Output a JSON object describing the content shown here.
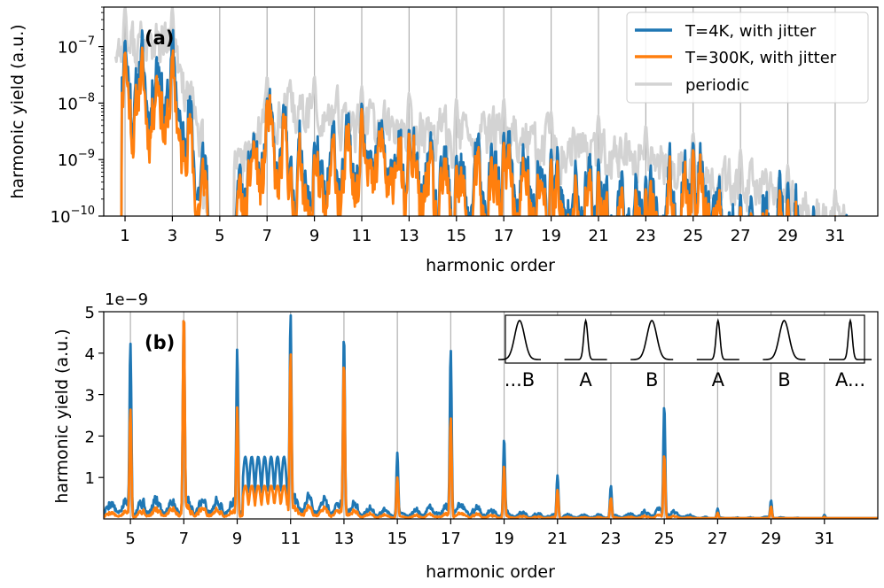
{
  "chart_data": [
    {
      "type": "line",
      "panel_label": "(a)",
      "xlabel": "harmonic order",
      "ylabel": "harmonic yield (a.u.)",
      "yscale": "log",
      "xlim": [
        0.1,
        32.8
      ],
      "ylim": [
        1e-10,
        5e-07
      ],
      "x_ticks": [
        1,
        3,
        5,
        7,
        9,
        11,
        13,
        15,
        17,
        19,
        21,
        23,
        25,
        27,
        29,
        31
      ],
      "y_ticks": [
        {
          "value": 1e-10,
          "base": "10",
          "exp": "−10"
        },
        {
          "value": 1e-09,
          "base": "10",
          "exp": "−9"
        },
        {
          "value": 1e-08,
          "base": "10",
          "exp": "−8"
        },
        {
          "value": 1e-07,
          "base": "10",
          "exp": "−7"
        }
      ],
      "grid": "vertical lines at odd harmonics",
      "legend_position": "top-right",
      "legend": [
        "T=4K, with jitter",
        "T=300K, with jitter",
        "periodic"
      ],
      "series": [
        {
          "name": "T=4K, with jitter",
          "color": "#1f77b4",
          "peaks": [
            {
              "x": 1,
              "y": 1.3e-07
            },
            {
              "x": 3,
              "y": 1.4e-07
            },
            {
              "x": 5,
              "y": 3e-10
            },
            {
              "x": 7,
              "y": 1.2e-08
            },
            {
              "x": 9,
              "y": 2e-09
            },
            {
              "x": 11,
              "y": 1e-08
            },
            {
              "x": 13,
              "y": 3.5e-09
            },
            {
              "x": 15,
              "y": 1.2e-09
            },
            {
              "x": 17,
              "y": 3e-09
            },
            {
              "x": 19,
              "y": 1.5e-09
            },
            {
              "x": 21,
              "y": 1e-09
            },
            {
              "x": 23,
              "y": 5e-10
            },
            {
              "x": 25,
              "y": 2e-09
            },
            {
              "x": 27,
              "y": 2.5e-10
            },
            {
              "x": 29,
              "y": 4e-10
            },
            {
              "x": 31,
              "y": 1e-10
            }
          ]
        },
        {
          "name": "T=300K, with jitter",
          "color": "#ff7f0e",
          "peaks": [
            {
              "x": 1,
              "y": 8e-08
            },
            {
              "x": 3,
              "y": 7e-08
            },
            {
              "x": 5,
              "y": 2e-10
            },
            {
              "x": 7,
              "y": 1.1e-08
            },
            {
              "x": 9,
              "y": 1.2e-09
            },
            {
              "x": 11,
              "y": 8e-09
            },
            {
              "x": 13,
              "y": 3e-09
            },
            {
              "x": 15,
              "y": 8e-10
            },
            {
              "x": 17,
              "y": 2e-09
            },
            {
              "x": 19,
              "y": 1e-09
            },
            {
              "x": 21,
              "y": 6e-10
            },
            {
              "x": 23,
              "y": 3e-10
            },
            {
              "x": 25,
              "y": 1.5e-09
            },
            {
              "x": 27,
              "y": 1.5e-10
            },
            {
              "x": 29,
              "y": 2e-10
            },
            {
              "x": 31,
              "y": 1e-10
            }
          ]
        },
        {
          "name": "periodic",
          "color": "#d3d3d3",
          "x_range": [
            0.6,
            31.5
          ],
          "envelope": [
            {
              "x": 1,
              "y": 5e-07
            },
            {
              "x": 3,
              "y": 5e-07
            },
            {
              "x": 5,
              "y": 1e-09
            },
            {
              "x": 7,
              "y": 3e-08
            },
            {
              "x": 9,
              "y": 3e-08
            },
            {
              "x": 11,
              "y": 2e-08
            },
            {
              "x": 13,
              "y": 1.5e-08
            },
            {
              "x": 15,
              "y": 1.2e-08
            },
            {
              "x": 17,
              "y": 1.2e-08
            },
            {
              "x": 19,
              "y": 7e-09
            },
            {
              "x": 21,
              "y": 6e-09
            },
            {
              "x": 23,
              "y": 4e-09
            },
            {
              "x": 25,
              "y": 3e-09
            },
            {
              "x": 27,
              "y": 1.5e-09
            },
            {
              "x": 29,
              "y": 8e-10
            },
            {
              "x": 31,
              "y": 3e-10
            }
          ]
        }
      ]
    },
    {
      "type": "line",
      "panel_label": "(b)",
      "xlabel": "harmonic order",
      "ylabel": "harmonic yield (a.u.)",
      "yscale": "linear",
      "y_offset_label": "1e−9",
      "xlim": [
        4,
        33
      ],
      "ylim": [
        0,
        5
      ],
      "x_ticks": [
        5,
        7,
        9,
        11,
        13,
        15,
        17,
        19,
        21,
        23,
        25,
        27,
        29,
        31
      ],
      "y_ticks": [
        1,
        2,
        3,
        4,
        5
      ],
      "grid": "vertical lines at odd harmonics",
      "series": [
        {
          "name": "T=4K, with jitter",
          "color": "#1f77b4",
          "peaks": [
            {
              "x": 5,
              "y": 4.25
            },
            {
              "x": 7,
              "y": 5.0
            },
            {
              "x": 9,
              "y": 4.1
            },
            {
              "x": 11,
              "y": 4.95
            },
            {
              "x": 13,
              "y": 4.45
            },
            {
              "x": 15,
              "y": 1.6
            },
            {
              "x": 17,
              "y": 4.1
            },
            {
              "x": 19,
              "y": 1.95
            },
            {
              "x": 21,
              "y": 1.05
            },
            {
              "x": 23,
              "y": 0.8
            },
            {
              "x": 25,
              "y": 2.75
            },
            {
              "x": 27,
              "y": 0.25
            },
            {
              "x": 29,
              "y": 0.45
            },
            {
              "x": 31,
              "y": 0.1
            }
          ]
        },
        {
          "name": "T=300K, with jitter",
          "color": "#ff7f0e",
          "peaks": [
            {
              "x": 5,
              "y": 2.65
            },
            {
              "x": 7,
              "y": 5.0
            },
            {
              "x": 9,
              "y": 2.7
            },
            {
              "x": 11,
              "y": 4.0
            },
            {
              "x": 13,
              "y": 3.8
            },
            {
              "x": 15,
              "y": 1.0
            },
            {
              "x": 17,
              "y": 2.45
            },
            {
              "x": 19,
              "y": 1.3
            },
            {
              "x": 21,
              "y": 0.7
            },
            {
              "x": 23,
              "y": 0.5
            },
            {
              "x": 25,
              "y": 1.55
            },
            {
              "x": 27,
              "y": 0.15
            },
            {
              "x": 29,
              "y": 0.3
            },
            {
              "x": 31,
              "y": 0.05
            }
          ]
        }
      ],
      "inset": {
        "description": "pulse train schematic",
        "labels": [
          "...B",
          "A",
          "B",
          "A",
          "B",
          "A..."
        ],
        "pulse_types": [
          "B",
          "A",
          "B",
          "A",
          "B",
          "A"
        ]
      }
    }
  ]
}
